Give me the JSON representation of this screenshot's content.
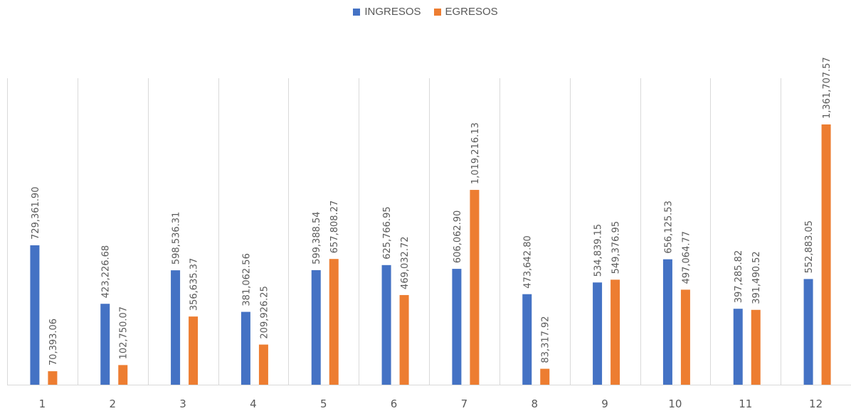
{
  "chart_data": {
    "type": "bar",
    "categories": [
      "1",
      "2",
      "3",
      "4",
      "5",
      "6",
      "7",
      "8",
      "9",
      "10",
      "11",
      "12"
    ],
    "series": [
      {
        "name": "INGRESOS",
        "color": "#4472C4",
        "values": [
          729361.9,
          423226.68,
          598536.31,
          381062.56,
          599388.54,
          625766.95,
          606062.9,
          473642.8,
          534839.15,
          656125.53,
          397285.82,
          552883.05
        ],
        "labels": [
          "729,361.90",
          "423,226.68",
          "598,536.31",
          "381,062.56",
          "599,388.54",
          "625,766.95",
          "606,062.90",
          "473,642.80",
          "534,839.15",
          "656,125.53",
          "397,285.82",
          "552,883.05"
        ]
      },
      {
        "name": "EGRESOS",
        "color": "#ED7D31",
        "values": [
          70393.06,
          102750.07,
          356635.37,
          209926.25,
          657808.27,
          469032.72,
          1019216.13,
          83317.92,
          549376.95,
          497064.77,
          391490.52,
          1361707.57
        ],
        "labels": [
          "70,393.06",
          "102,750.07",
          "356,635.37",
          "209,926.25",
          "657,808.27",
          "469,032.72",
          "1,019,216.13",
          "83,317.92",
          "549,376.95",
          "497,064.77",
          "391,490.52",
          "1,361,707.57"
        ]
      }
    ],
    "legend_position": "top",
    "grid": "vertical",
    "ylim": [
      0,
      1400000
    ]
  }
}
